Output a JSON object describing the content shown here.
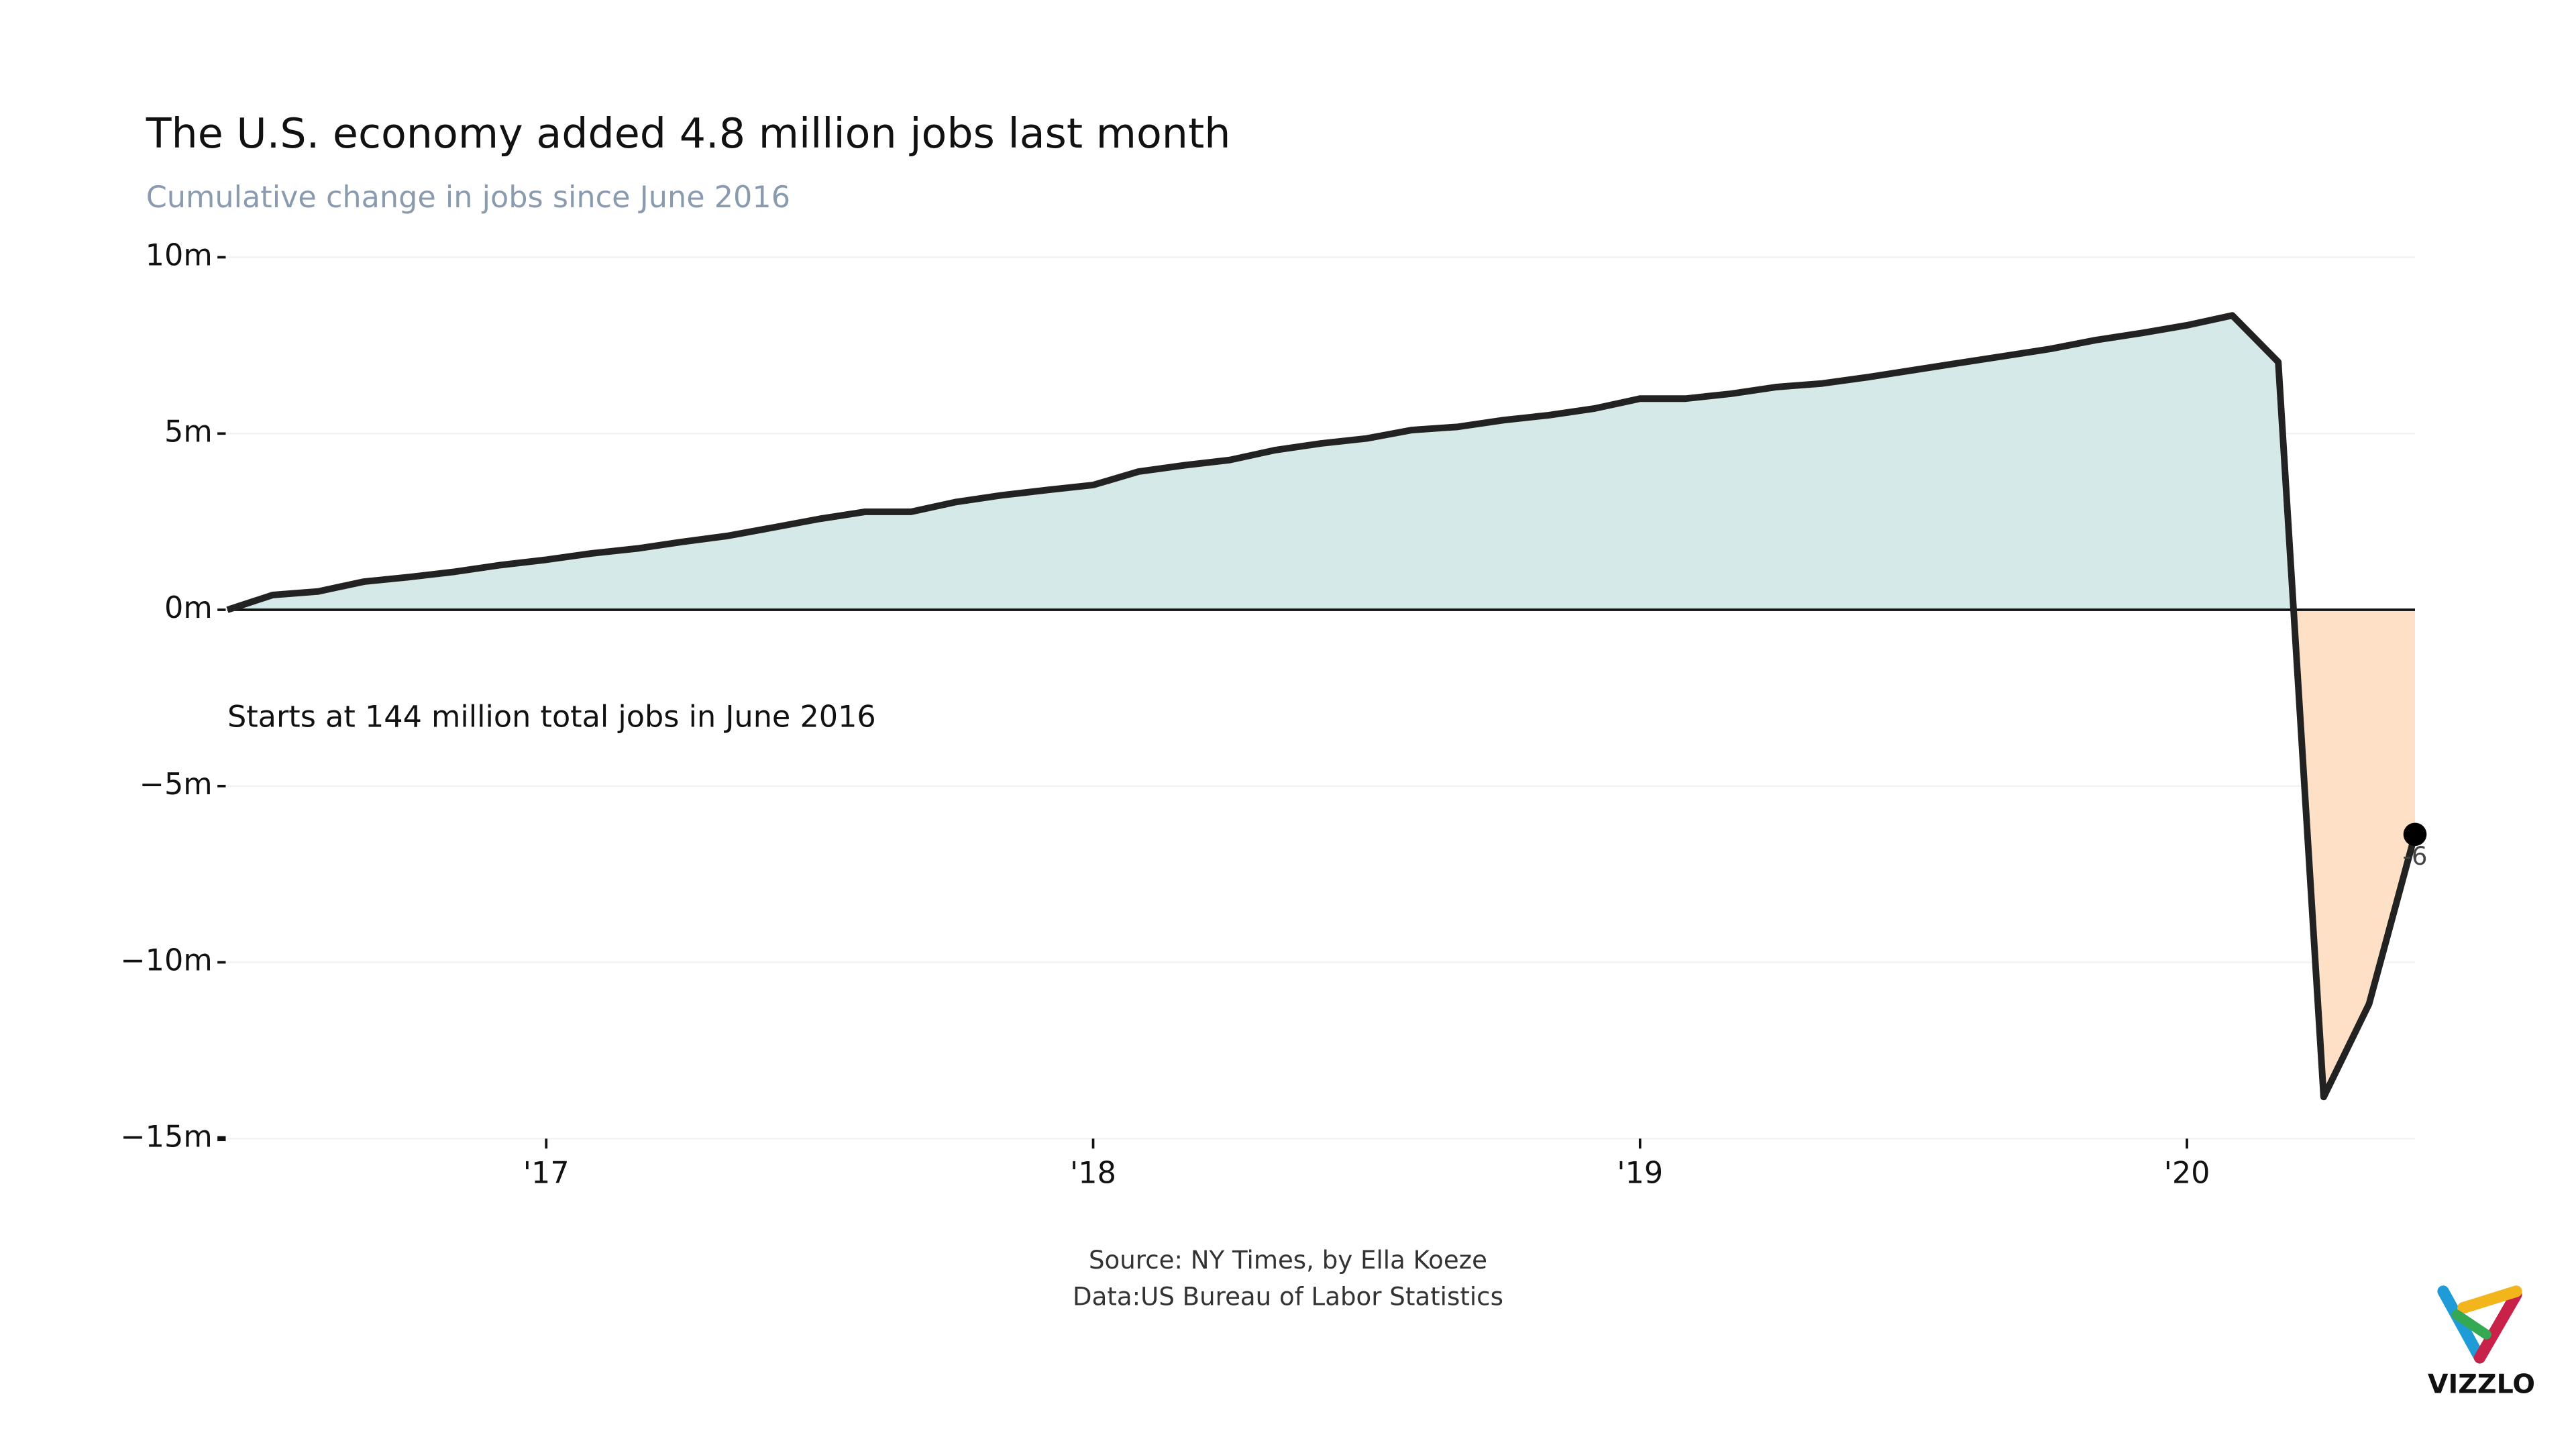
{
  "chart_data": {
    "type": "area",
    "title": "The U.S. economy added 4.8 million jobs last month",
    "subtitle": "Cumulative change in jobs since June 2016",
    "annotation": "Starts at 144 million total jobs in June 2016",
    "source": [
      "Source: NY Times, by Ella Koeze",
      "Data:US Bureau of Labor Statistics"
    ],
    "logo": "VIZZLO",
    "x": [
      2016.417,
      2016.5,
      2016.583,
      2016.667,
      2016.75,
      2016.833,
      2016.917,
      2017,
      2017.083,
      2017.167,
      2017.25,
      2017.333,
      2017.417,
      2017.5,
      2017.583,
      2017.667,
      2017.75,
      2017.833,
      2017.917,
      2018,
      2018.083,
      2018.167,
      2018.25,
      2018.333,
      2018.417,
      2018.5,
      2018.583,
      2018.667,
      2018.75,
      2018.833,
      2018.917,
      2019,
      2019.083,
      2019.167,
      2019.25,
      2019.333,
      2019.417,
      2019.5,
      2019.583,
      2019.667,
      2019.75,
      2019.833,
      2019.917,
      2020,
      2020.083,
      2020.167,
      2020.25,
      2020.333,
      2020.417
    ],
    "values": [
      0,
      0.42,
      0.52,
      0.8,
      0.93,
      1.08,
      1.27,
      1.42,
      1.6,
      1.74,
      1.93,
      2.1,
      2.34,
      2.58,
      2.78,
      2.78,
      3.06,
      3.25,
      3.4,
      3.54,
      3.92,
      4.1,
      4.25,
      4.53,
      4.72,
      4.86,
      5.1,
      5.19,
      5.38,
      5.52,
      5.71,
      5.99,
      5.99,
      6.13,
      6.32,
      6.42,
      6.6,
      6.8,
      7.0,
      7.2,
      7.4,
      7.65,
      7.85,
      8.07,
      8.35,
      7.03,
      -13.82,
      -11.18,
      -6.37
    ],
    "value_labels": [
      null,
      null,
      null,
      null,
      null,
      null,
      null,
      null,
      null,
      null,
      null,
      null,
      null,
      null,
      null,
      null,
      null,
      null,
      null,
      null,
      null,
      null,
      null,
      null,
      null,
      null,
      null,
      null,
      null,
      null,
      null,
      null,
      null,
      null,
      null,
      null,
      null,
      null,
      null,
      null,
      null,
      null,
      null,
      null,
      null,
      null,
      null,
      null,
      "-6"
    ],
    "color": "#222222",
    "positive_fill": "#d4e9e8",
    "negative_fill": "#fde0c5",
    "xlim": [
      2016.417,
      2020.417
    ],
    "xticks": [
      {
        "value": 2017,
        "label": "'17"
      },
      {
        "value": 2018,
        "label": "'18"
      },
      {
        "value": 2019,
        "label": "'19"
      },
      {
        "value": 2020,
        "label": "'20"
      }
    ],
    "ylim": [
      -15,
      10
    ],
    "yticks": [
      {
        "value": 10,
        "label": "10m"
      },
      {
        "value": 5,
        "label": "5m"
      },
      {
        "value": 0,
        "label": "0m"
      },
      {
        "value": -5,
        "label": "−5m"
      },
      {
        "value": -10,
        "label": "−10m"
      },
      {
        "value": -15,
        "label": "−15m"
      }
    ],
    "grid": true
  }
}
